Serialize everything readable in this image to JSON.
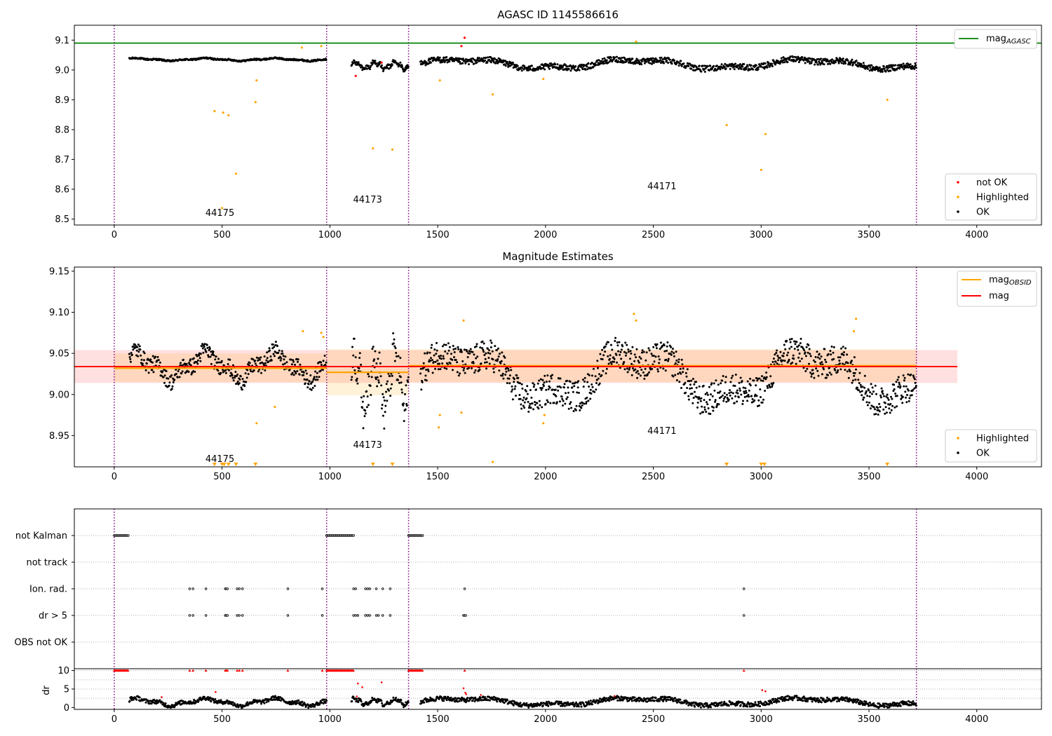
{
  "chart_data": [
    {
      "type": "scatter",
      "title": "AGASC ID 1145586616",
      "xlim": [
        -185,
        4300
      ],
      "ylim": [
        8.48,
        9.15
      ],
      "x_ticks": [
        "0",
        "500",
        "1000",
        "1500",
        "2000",
        "2500",
        "3000",
        "3500",
        "4000"
      ],
      "y_ticks": [
        "8.5",
        "8.6",
        "8.7",
        "8.8",
        "8.9",
        "9.0",
        "9.1"
      ],
      "obsid_boundaries": [
        0,
        985,
        1365,
        3720
      ],
      "obsid_labels": [
        {
          "text": "44175",
          "x": 490,
          "y": 8.51
        },
        {
          "text": "44173",
          "x": 1175,
          "y": 8.555
        },
        {
          "text": "44171",
          "x": 2540,
          "y": 8.6
        }
      ],
      "reference_line": {
        "name": "mag",
        "subscript": "AGASC",
        "value": 9.09
      },
      "legend_reference": {
        "label": "mag",
        "subscript": "AGASC"
      },
      "legend_points": [
        "not OK",
        "Highlighted",
        "OK"
      ],
      "segments": [
        {
          "x0": 70,
          "x1": 985,
          "y0": 9.03,
          "y1": 9.04
        },
        {
          "x0": 1100,
          "x1": 1365,
          "y0": 9.0,
          "y1": 9.03
        },
        {
          "x0": 1420,
          "x1": 3720,
          "y0": 9.0,
          "y1": 9.04
        }
      ],
      "highlighted_points": [
        [
          465,
          8.862
        ],
        [
          505,
          8.857
        ],
        [
          530,
          8.848
        ],
        [
          565,
          8.652
        ],
        [
          500,
          8.537
        ],
        [
          655,
          8.892
        ],
        [
          660,
          8.965
        ],
        [
          1200,
          8.737
        ],
        [
          1290,
          8.733
        ],
        [
          1755,
          8.918
        ],
        [
          2840,
          8.815
        ],
        [
          3000,
          8.665
        ],
        [
          3020,
          8.785
        ],
        [
          3585,
          8.9
        ],
        [
          1510,
          8.965
        ],
        [
          1990,
          8.97
        ],
        [
          870,
          9.075
        ],
        [
          960,
          9.08
        ],
        [
          2420,
          9.095
        ]
      ],
      "not_ok_points": [
        [
          1625,
          9.108
        ],
        [
          1120,
          8.98
        ],
        [
          1240,
          9.025
        ],
        [
          1610,
          9.08
        ]
      ]
    },
    {
      "type": "scatter",
      "title": "Magnitude Estimates",
      "xlim": [
        -185,
        4300
      ],
      "ylim": [
        8.912,
        9.155
      ],
      "x_ticks": [
        "0",
        "500",
        "1000",
        "1500",
        "2000",
        "2500",
        "3000",
        "3500",
        "4000"
      ],
      "y_ticks": [
        "8.95",
        "9.00",
        "9.05",
        "9.10",
        "9.15"
      ],
      "obsid_boundaries": [
        0,
        985,
        1365,
        3720
      ],
      "obsid_labels": [
        {
          "text": "44175",
          "x": 490,
          "y": 8.918
        },
        {
          "text": "44173",
          "x": 1175,
          "y": 8.935
        },
        {
          "text": "44171",
          "x": 2540,
          "y": 8.952
        }
      ],
      "mag": {
        "name": "mag",
        "value": 9.034,
        "band": [
          9.014,
          9.054
        ],
        "x": [
          -185,
          3910
        ]
      },
      "mag_obsid": [
        {
          "x0": 0,
          "x1": 985,
          "value": 9.032,
          "band": [
            9.015,
            9.05
          ]
        },
        {
          "x0": 985,
          "x1": 1365,
          "value": 9.027,
          "band": [
            8.999,
            9.055
          ]
        },
        {
          "x0": 1365,
          "x1": 3720,
          "value": 9.035,
          "band": [
            9.015,
            9.055
          ]
        }
      ],
      "legend_lines": [
        {
          "label": "mag",
          "subscript": "OBSID",
          "color": "#ffa500"
        },
        {
          "label": "mag",
          "subscript": "",
          "color": "#ff0000"
        }
      ],
      "legend_points": [
        "Highlighted",
        "OK"
      ],
      "segments": [
        {
          "x0": 70,
          "x1": 985,
          "y0": 9.015,
          "y1": 9.055
        },
        {
          "x0": 1100,
          "x1": 1365,
          "y0": 8.975,
          "y1": 9.06
        },
        {
          "x0": 1420,
          "x1": 3720,
          "y0": 8.985,
          "y1": 9.06
        }
      ],
      "highlighted_points": [
        [
          660,
          8.965
        ],
        [
          745,
          8.985
        ],
        [
          875,
          9.077
        ],
        [
          960,
          9.075
        ],
        [
          970,
          9.07
        ],
        [
          1505,
          8.96
        ],
        [
          1510,
          8.975
        ],
        [
          1610,
          8.978
        ],
        [
          1620,
          9.09
        ],
        [
          1755,
          8.918
        ],
        [
          1990,
          8.965
        ],
        [
          1995,
          8.975
        ],
        [
          2410,
          9.098
        ],
        [
          2420,
          9.09
        ],
        [
          3440,
          9.092
        ],
        [
          3430,
          9.077
        ]
      ],
      "lower_limit_markers": [
        465,
        500,
        510,
        530,
        565,
        655,
        1200,
        1290,
        2840,
        3000,
        3015,
        3585
      ]
    },
    {
      "type": "scatter",
      "ylabels": [
        "not Kalman",
        "not track",
        "Ion. rad.",
        "dr > 5",
        "OBS not OK"
      ],
      "xlim": [
        -185,
        4300
      ],
      "obsid_boundaries": [
        0,
        985,
        1365,
        3720
      ],
      "flag_ranges": [
        {
          "flag": "not Kalman",
          "ranges": [
            [
              0,
              65
            ],
            [
              985,
              1110
            ],
            [
              1365,
              1430
            ]
          ]
        }
      ],
      "flag_points": [
        {
          "flag": "Ion. rad.",
          "x": [
            350,
            365,
            425,
            515,
            520,
            525,
            570,
            580,
            595,
            805,
            965,
            1110,
            1120,
            1165,
            1175,
            1185,
            1215,
            1245,
            1280,
            1625,
            2920
          ]
        },
        {
          "flag": "dr > 5",
          "x": [
            350,
            365,
            425,
            515,
            520,
            525,
            570,
            580,
            595,
            805,
            965,
            1110,
            1120,
            1130,
            1165,
            1175,
            1185,
            1215,
            1225,
            1245,
            1280,
            1620,
            1625,
            1630,
            2920
          ]
        }
      ]
    },
    {
      "type": "scatter",
      "ylabel": "dr",
      "xlim": [
        -185,
        4300
      ],
      "ylim": [
        -0.5,
        10.5
      ],
      "x_ticks": [
        "0",
        "500",
        "1000",
        "1500",
        "2000",
        "2500",
        "3000",
        "3500",
        "4000"
      ],
      "y_ticks": [
        "0",
        "5",
        "10"
      ],
      "obsid_boundaries": [
        0,
        985,
        1365,
        3720
      ],
      "clipped_ranges": [
        [
          0,
          65
        ],
        [
          985,
          1110
        ],
        [
          1365,
          1430
        ]
      ],
      "clipped_points": [
        350,
        365,
        425,
        515,
        520,
        525,
        570,
        580,
        595,
        805,
        965,
        1625,
        2920
      ],
      "not_ok_points": [
        [
          1130,
          6.5
        ],
        [
          1150,
          5.5
        ],
        [
          1240,
          6.8
        ],
        [
          1620,
          5.2
        ],
        [
          1628,
          4.0
        ],
        [
          1632,
          3.6
        ],
        [
          3005,
          4.7
        ],
        [
          3020,
          4.4
        ],
        [
          470,
          4.2
        ],
        [
          220,
          2.8
        ],
        [
          1125,
          3.0
        ],
        [
          2320,
          3.1
        ],
        [
          1700,
          3.4
        ]
      ],
      "segments": [
        {
          "x0": 70,
          "x1": 985,
          "y0": 0.4,
          "y1": 2.6
        },
        {
          "x0": 1100,
          "x1": 1365,
          "y0": 0.5,
          "y1": 2.6
        },
        {
          "x0": 1420,
          "x1": 3720,
          "y0": 0.3,
          "y1": 2.8
        }
      ]
    }
  ]
}
